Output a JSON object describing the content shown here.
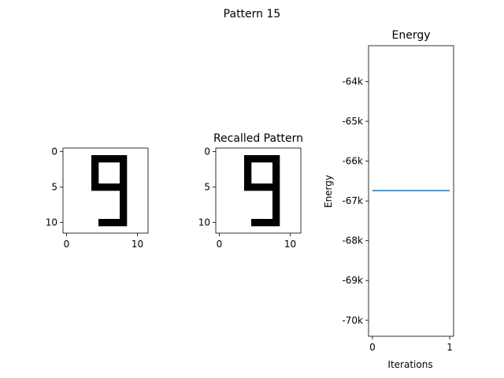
{
  "figure": {
    "suptitle": "Pattern 15"
  },
  "chart_data": [
    {
      "type": "heatmap",
      "title": "",
      "grid_size": [
        12,
        12
      ],
      "colormap": "gray_r",
      "xticks": [
        0,
        10
      ],
      "yticks": [
        0,
        5,
        10
      ],
      "pattern": [
        "............",
        "....#####...",
        "....#...#...",
        "....#...#...",
        "....#...#...",
        "....#####...",
        "........#...",
        "........#...",
        "........#...",
        "........#...",
        ".....####...",
        "............"
      ]
    },
    {
      "type": "heatmap",
      "title": "Recalled Pattern",
      "grid_size": [
        12,
        12
      ],
      "colormap": "gray_r",
      "xticks": [
        0,
        10
      ],
      "yticks": [
        0,
        5,
        10
      ],
      "pattern": [
        "............",
        "....#####...",
        "....#...#...",
        "....#...#...",
        "....#...#...",
        "....#####...",
        "........#...",
        "........#...",
        "........#...",
        "........#...",
        ".....####...",
        "............"
      ]
    },
    {
      "type": "line",
      "title": "Energy",
      "xlabel": "Iterations",
      "ylabel": "Energy",
      "x": [
        0,
        1
      ],
      "series": [
        {
          "values": [
            -66740,
            -66740
          ],
          "color": "#1f77b4"
        }
      ],
      "xlim": [
        -0.05,
        1.05
      ],
      "ylim": [
        -70400,
        -63100
      ],
      "xticks": [
        0,
        1
      ],
      "yticks": [
        -64000,
        -65000,
        -66000,
        -67000,
        -68000,
        -69000,
        -70000
      ],
      "ytick_labels": [
        "-64k",
        "-65k",
        "-66k",
        "-67k",
        "-68k",
        "-69k",
        "-70k"
      ]
    }
  ]
}
